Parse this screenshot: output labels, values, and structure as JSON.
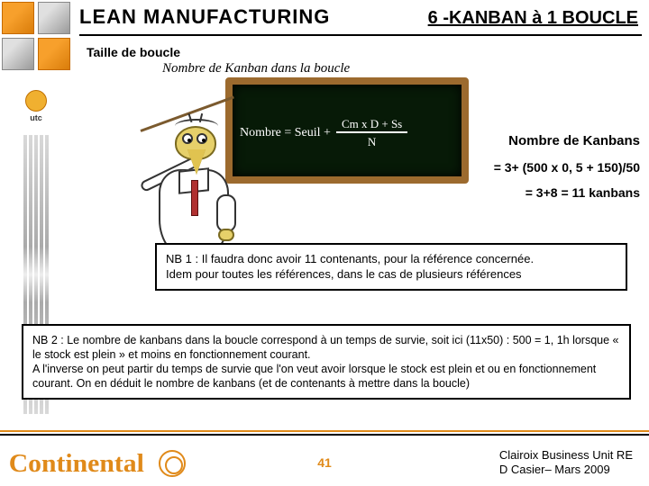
{
  "colors": {
    "accent_orange": "#e08a1a",
    "board_bg": "#071a07",
    "board_frame": "#9c6a2e",
    "text": "#000000",
    "white": "#ffffff"
  },
  "header": {
    "title_left": "LEAN MANUFACTURING",
    "title_right": "6 -KANBAN à 1 BOUCLE",
    "title_left_fontsize": 22,
    "title_right_fontsize": 20
  },
  "subtitle": "Taille de boucle",
  "subtitle2": "Nombre de Kanban dans la boucle",
  "chalkboard": {
    "lhs": "Nombre = Seuil +",
    "numerator": "Cm x D + Ss",
    "denominator": "N",
    "text_color": "#ffffff"
  },
  "calc": {
    "heading": "Nombre de Kanbans",
    "line1": "= 3+ (500 x 0, 5 + 150)/50",
    "line2": "= 3+8 = 11 kanbans"
  },
  "nb1": {
    "l1": "NB 1 : Il faudra donc avoir 11 contenants, pour la référence concernée.",
    "l2": "Idem pour toutes les références, dans le cas de plusieurs références"
  },
  "nb2": {
    "l1": "NB 2 : Le nombre de kanbans dans la boucle correspond à un temps de survie, soit ici (11x50) : 500 = 1, 1h lorsque « le stock est plein » et moins en fonctionnement courant.",
    "l2": "A l'inverse on peut partir du temps de survie que l'on veut avoir lorsque le stock est plein et ou en fonctionnement courant. On en déduit le nombre de kanbans (et de contenants à mettre dans la boucle)"
  },
  "utc": {
    "label": "utc"
  },
  "footer": {
    "logo_text": "Continental",
    "page": "41",
    "right_l1": "Clairoix Business Unit RE",
    "right_l2": "D Casier– Mars 2009"
  }
}
